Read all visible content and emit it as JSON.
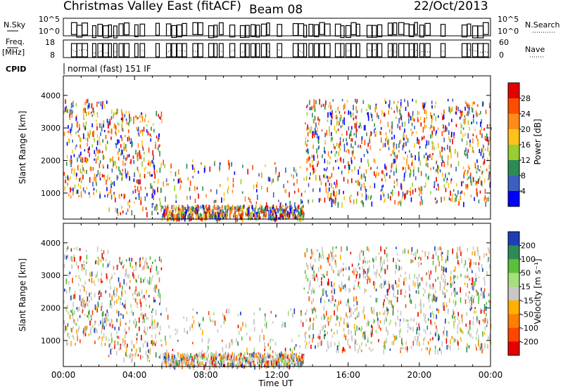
{
  "header": {
    "title": "Christmas Valley East (fitACF)",
    "beam": "Beam 08",
    "date": "22/Oct/2013"
  },
  "chart_data": [
    {
      "type": "line",
      "panel": "N.Sky / N.Search",
      "left_label": "N.Sky",
      "right_label": "N.Search",
      "left_ticks": [
        "10^5",
        "10^0"
      ],
      "right_ticks": [
        "10^5",
        "10^0"
      ]
    },
    {
      "type": "line",
      "panel": "Freq. / Nave",
      "left_label": "Freq.",
      "left_unit": "[MHz]",
      "right_label": "Nave",
      "left_ticks": [
        "18",
        "8"
      ],
      "right_ticks": [
        "60",
        "0"
      ]
    },
    {
      "type": "table",
      "panel": "CPID",
      "label": "CPID",
      "value": "normal (fast) 151 IF"
    },
    {
      "type": "heatmap",
      "panel": "power",
      "ylabel": "Slant Range [km]",
      "yticks": [
        "4000",
        "3000",
        "2000",
        "1000"
      ],
      "y_values": [
        4000,
        3000,
        2000,
        1000
      ],
      "ylim": [
        200,
        4600
      ],
      "colorbar_label": "Power [dB]",
      "colorbar_ticks": [
        "28",
        "24",
        "20",
        "16",
        "12",
        "8",
        "4"
      ],
      "colorbar_colors": [
        "#e60000",
        "#ff4d00",
        "#ff8c1a",
        "#ffc21a",
        "#9acd32",
        "#2e8b57",
        "#3b5fc0",
        "#0000ff"
      ]
    },
    {
      "type": "heatmap",
      "panel": "velocity",
      "ylabel": "Slant Range [km]",
      "yticks": [
        "4000",
        "3000",
        "2000",
        "1000"
      ],
      "y_values": [
        4000,
        3000,
        2000,
        1000
      ],
      "ylim": [
        200,
        4600
      ],
      "xlabel": "Time UT",
      "xticks": [
        "00:00",
        "04:00",
        "08:00",
        "12:00",
        "16:00",
        "20:00",
        "00:00"
      ],
      "x_hours": [
        0,
        4,
        8,
        12,
        16,
        20,
        24
      ],
      "colorbar_label": "Velocity [m s⁻¹]",
      "colorbar_ticks": [
        "200",
        "100",
        "50",
        "15",
        "-15",
        "-50",
        "-100",
        "-200"
      ],
      "colorbar_colors": [
        "#1c3fb8",
        "#2e8b57",
        "#5bbf3a",
        "#a6e07a",
        "#c8c8c8",
        "#ffb000",
        "#ff7f00",
        "#ff4500",
        "#e60000"
      ]
    }
  ]
}
